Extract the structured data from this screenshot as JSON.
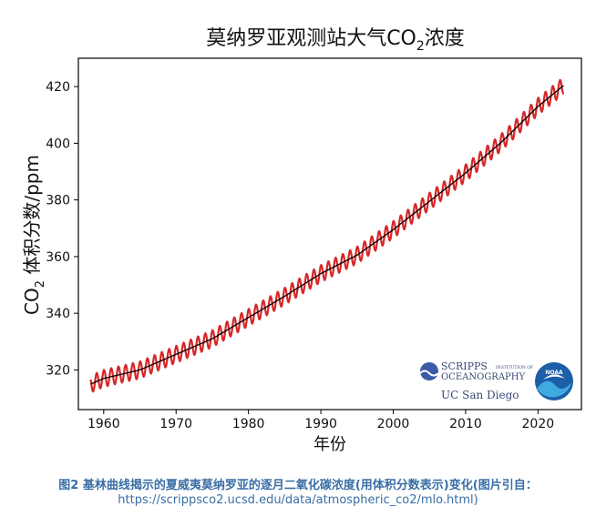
{
  "chart_data": {
    "type": "line",
    "title_pre": "莫纳罗亚观测站大气CO",
    "title_sub": "2",
    "title_post": "浓度",
    "ylabel_pre": "CO",
    "ylabel_sub": "2",
    "ylabel_post": " 体积分数/ppm",
    "xlabel": "年份",
    "xlim": [
      1956.5,
      2026
    ],
    "ylim": [
      306,
      430
    ],
    "xticks": [
      1960,
      1970,
      1980,
      1990,
      2000,
      2010,
      2020
    ],
    "yticks": [
      320,
      340,
      360,
      380,
      400,
      420
    ],
    "x_range": [
      1958.2,
      2023.6
    ],
    "series": [
      {
        "kind": "monthly",
        "color": "#d62728",
        "seasonal_amplitude": 3.0,
        "x": [
          1958.2,
          1960,
          1965,
          1970,
          1975,
          1980,
          1985,
          1990,
          1995,
          2000,
          2005,
          2010,
          2015,
          2020,
          2023.6
        ],
        "values": [
          315,
          317,
          320,
          325.5,
          331,
          338.5,
          346,
          354,
          360.5,
          369.5,
          379.5,
          389.5,
          400.5,
          413,
          420.5
        ]
      },
      {
        "kind": "trend",
        "color": "#000000",
        "x": [
          1958.2,
          1960,
          1965,
          1970,
          1975,
          1980,
          1985,
          1990,
          1995,
          2000,
          2005,
          2010,
          2015,
          2020,
          2023.6
        ],
        "values": [
          315,
          317,
          320,
          325.5,
          331,
          338.5,
          346,
          354,
          360.5,
          369.5,
          379.5,
          389.5,
          400.5,
          413,
          420.5
        ]
      }
    ]
  },
  "logos": {
    "scripps_line1": "SCRIPPS",
    "scripps_small": "INSTITUTION OF",
    "scripps_line2": "OCEANOGRAPHY",
    "ucsd": "UC San Diego",
    "noaa": "NOAA"
  },
  "caption": {
    "line1": "图2 基林曲线揭示的夏威夷莫纳罗亚的逐月二氧化碳浓度(用体积分数表示)变化(图片引自：",
    "line2": "https://scrippsco2.ucsd.edu/data/atmospheric_co2/mlo.html)"
  }
}
